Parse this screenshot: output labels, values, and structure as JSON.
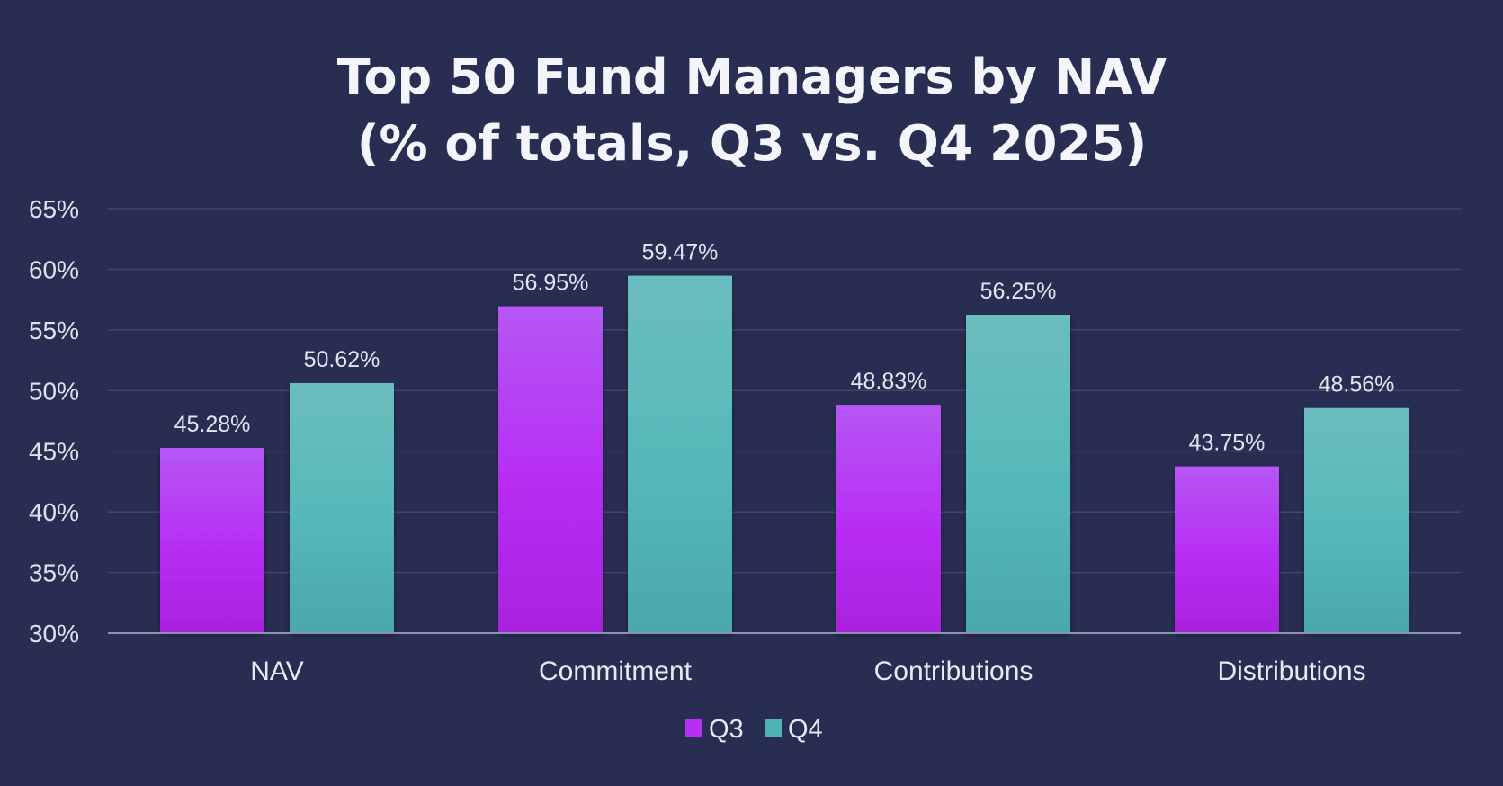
{
  "chart_data": {
    "type": "bar",
    "title_lines": [
      "Top 50 Fund Managers by NAV",
      "(% of totals, Q3 vs. Q4 2025)"
    ],
    "categories": [
      "NAV",
      "Commitment",
      "Contributions",
      "Distributions"
    ],
    "series": [
      {
        "name": "Q3",
        "values": [
          45.28,
          56.95,
          48.83,
          43.75
        ],
        "labels": [
          "45.28%",
          "56.95%",
          "48.83%",
          "43.75%"
        ],
        "color": "#b730f2",
        "color_top": "#b657f5"
      },
      {
        "name": "Q4",
        "values": [
          50.62,
          59.47,
          56.25,
          48.56
        ],
        "labels": [
          "50.62%",
          "59.47%",
          "56.25%",
          "48.56%"
        ],
        "color": "#4fb3b3",
        "color_top": "#6bbdbe"
      }
    ],
    "ylim": [
      30,
      65
    ],
    "yticks": [
      30,
      35,
      40,
      45,
      50,
      55,
      60,
      65
    ],
    "ytick_labels": [
      "30%",
      "35%",
      "40%",
      "45%",
      "50%",
      "55%",
      "60%",
      "65%"
    ],
    "xlabel": "",
    "ylabel": "",
    "grid": true,
    "legend_position": "bottom-center",
    "background_color": "#282d52"
  }
}
